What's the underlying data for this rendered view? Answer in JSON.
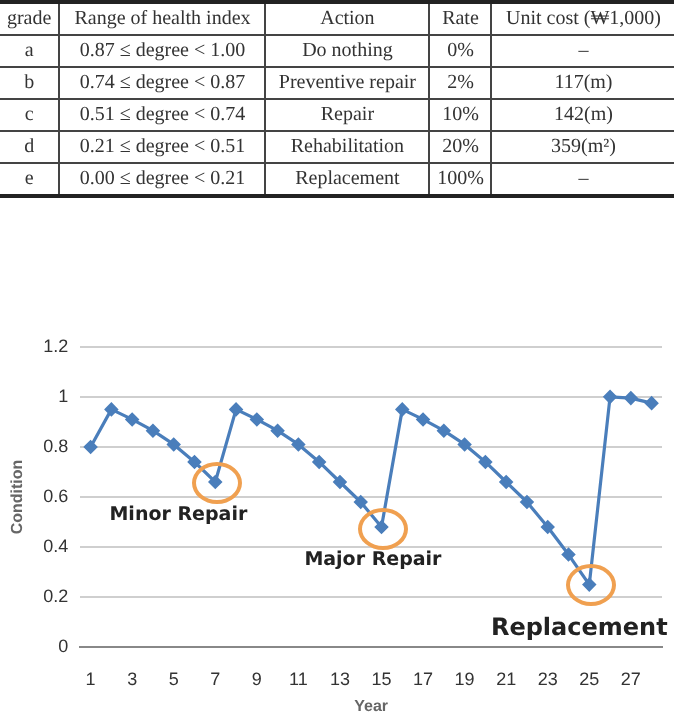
{
  "chart_data": [
    {
      "type": "other",
      "ylabel": "grade",
      "categories": [
        "Range of health index",
        "Action",
        "Rate",
        "Unit cost (₩1,000)"
      ],
      "y_categories": [
        "a",
        "b",
        "c",
        "d",
        "e"
      ],
      "cell_labels": [
        [
          "0.87 ≤ degree < 1.00",
          "Do nothing",
          "0%",
          "–"
        ],
        [
          "0.74 ≤ degree < 0.87",
          "Preventive repair",
          "2%",
          "117(m)"
        ],
        [
          "0.51 ≤ degree < 0.74",
          "Repair",
          "10%",
          "142(m)"
        ],
        [
          "0.21 ≤ degree < 0.51",
          "Rehabilitation",
          "20%",
          "359(m²)"
        ],
        [
          "0.00 ≤ degree < 0.21",
          "Replacement",
          "100%",
          "–"
        ]
      ]
    },
    {
      "type": "line",
      "xlabel": "Year",
      "ylabel": "Condition",
      "x": [
        1,
        2,
        3,
        4,
        5,
        6,
        7,
        8,
        9,
        10,
        11,
        12,
        13,
        14,
        15,
        16,
        17,
        18,
        19,
        20,
        21,
        22,
        23,
        24,
        25,
        26,
        27,
        28
      ],
      "xlim": [
        0.5,
        28.5
      ],
      "xticks": [
        1,
        3,
        5,
        7,
        9,
        11,
        13,
        15,
        17,
        19,
        21,
        23,
        25,
        27
      ],
      "series": [
        {
          "color": "#4a7ebb",
          "values": [
            0.8,
            0.95,
            0.91,
            0.865,
            0.81,
            0.74,
            0.66,
            0.95,
            0.91,
            0.865,
            0.81,
            0.74,
            0.66,
            0.58,
            0.48,
            0.95,
            0.91,
            0.865,
            0.81,
            0.74,
            0.66,
            0.58,
            0.48,
            0.37,
            0.25,
            1.0,
            0.995,
            0.975
          ]
        }
      ],
      "ylim": [
        0,
        1.2
      ],
      "yticks": [
        0,
        0.2,
        0.4,
        0.6,
        0.8,
        1,
        1.2
      ],
      "grid": "y",
      "legend": false,
      "marker": "diamond",
      "line_style": "solid",
      "annotations": [
        {
          "text": "Minor Repair",
          "x": 7,
          "y": 0.66
        },
        {
          "text": "Major Repair",
          "x": 15,
          "y": 0.48
        },
        {
          "text": "Replacement",
          "x": 25,
          "y": 0.25
        }
      ]
    }
  ]
}
